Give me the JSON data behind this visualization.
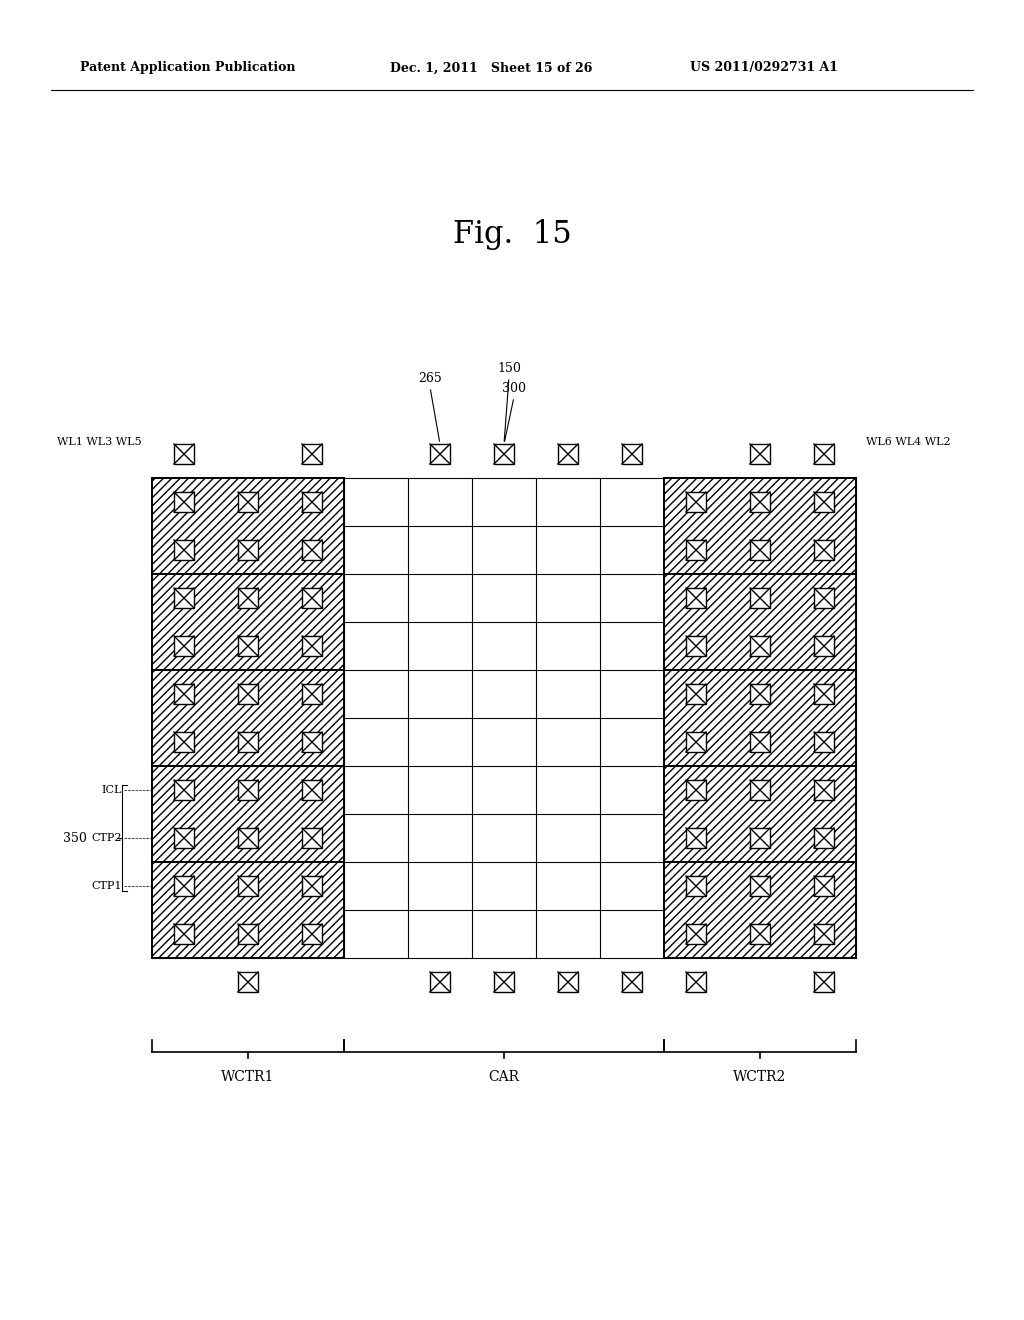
{
  "title": "Fig.  15",
  "header_left": "Patent Application Publication",
  "header_mid": "Dec. 1, 2011   Sheet 15 of 26",
  "header_right": "US 2011/0292731 A1",
  "bg_color": "#ffffff",
  "grid_color": "#000000",
  "hatch_color": "#aaaaaa",
  "label_265": "265",
  "label_150": "150",
  "label_300": "300",
  "label_wl_left": "WL1 WL3 WL5",
  "label_wl_right": "WL6 WL4 WL2",
  "label_wctr1": "WCTR1",
  "label_car": "CAR",
  "label_wctr2": "WCTR2",
  "label_350": "350",
  "label_icl": "ICL",
  "label_ctp2": "CTP2",
  "label_ctp1": "CTP1"
}
